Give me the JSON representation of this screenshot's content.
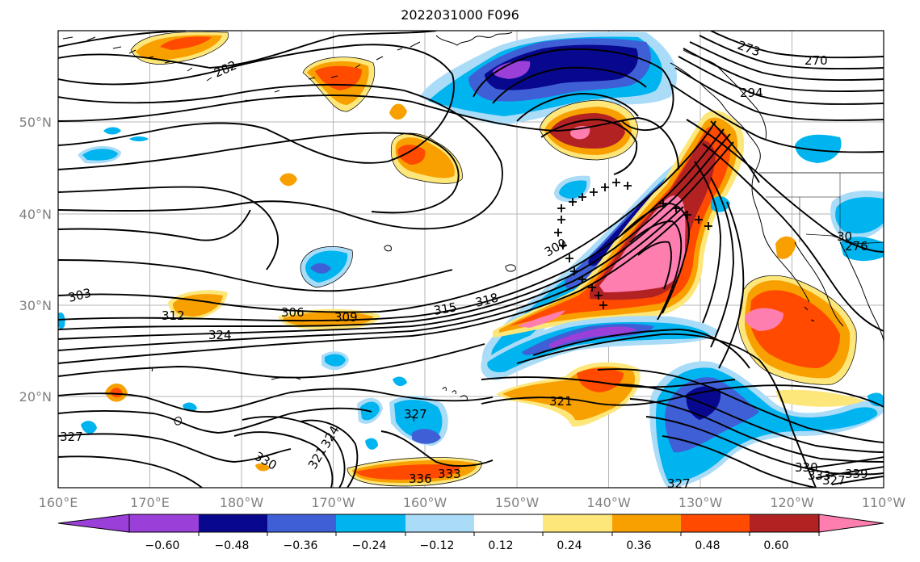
{
  "title": "2022031000 F096",
  "map": {
    "projection": "PlateCarree",
    "lon_range": [
      160,
      250
    ],
    "lat_range": [
      10,
      60
    ],
    "lon_ticks": [
      "160°E",
      "170°E",
      "180°W",
      "170°W",
      "160°W",
      "150°W",
      "140°W",
      "130°W",
      "120°W",
      "110°W"
    ],
    "lat_ticks": [
      "20°N",
      "30°N",
      "40°N",
      "50°N"
    ],
    "grid": true,
    "contour_labels": [
      "282",
      "273",
      "270",
      "294",
      "303",
      "312",
      "306",
      "309",
      "315",
      "318",
      "324",
      "300",
      "321",
      "327",
      "327",
      "330",
      "324",
      "321",
      "333",
      "336",
      "327",
      "330",
      "333",
      "339",
      "327",
      "30",
      "276"
    ]
  },
  "colorbar": {
    "colors": [
      "#9a3fd8",
      "#08088f",
      "#3f5fd6",
      "#00b4f0",
      "#aadcf8",
      "#ffffff",
      "#fde67a",
      "#f8a000",
      "#ff4a00",
      "#b22222",
      "#ff7eb0"
    ],
    "tick_labels": [
      "−0.60",
      "−0.48",
      "−0.36",
      "−0.24",
      "−0.12",
      "0.12",
      "0.24",
      "0.36",
      "0.48",
      "0.60"
    ]
  }
}
